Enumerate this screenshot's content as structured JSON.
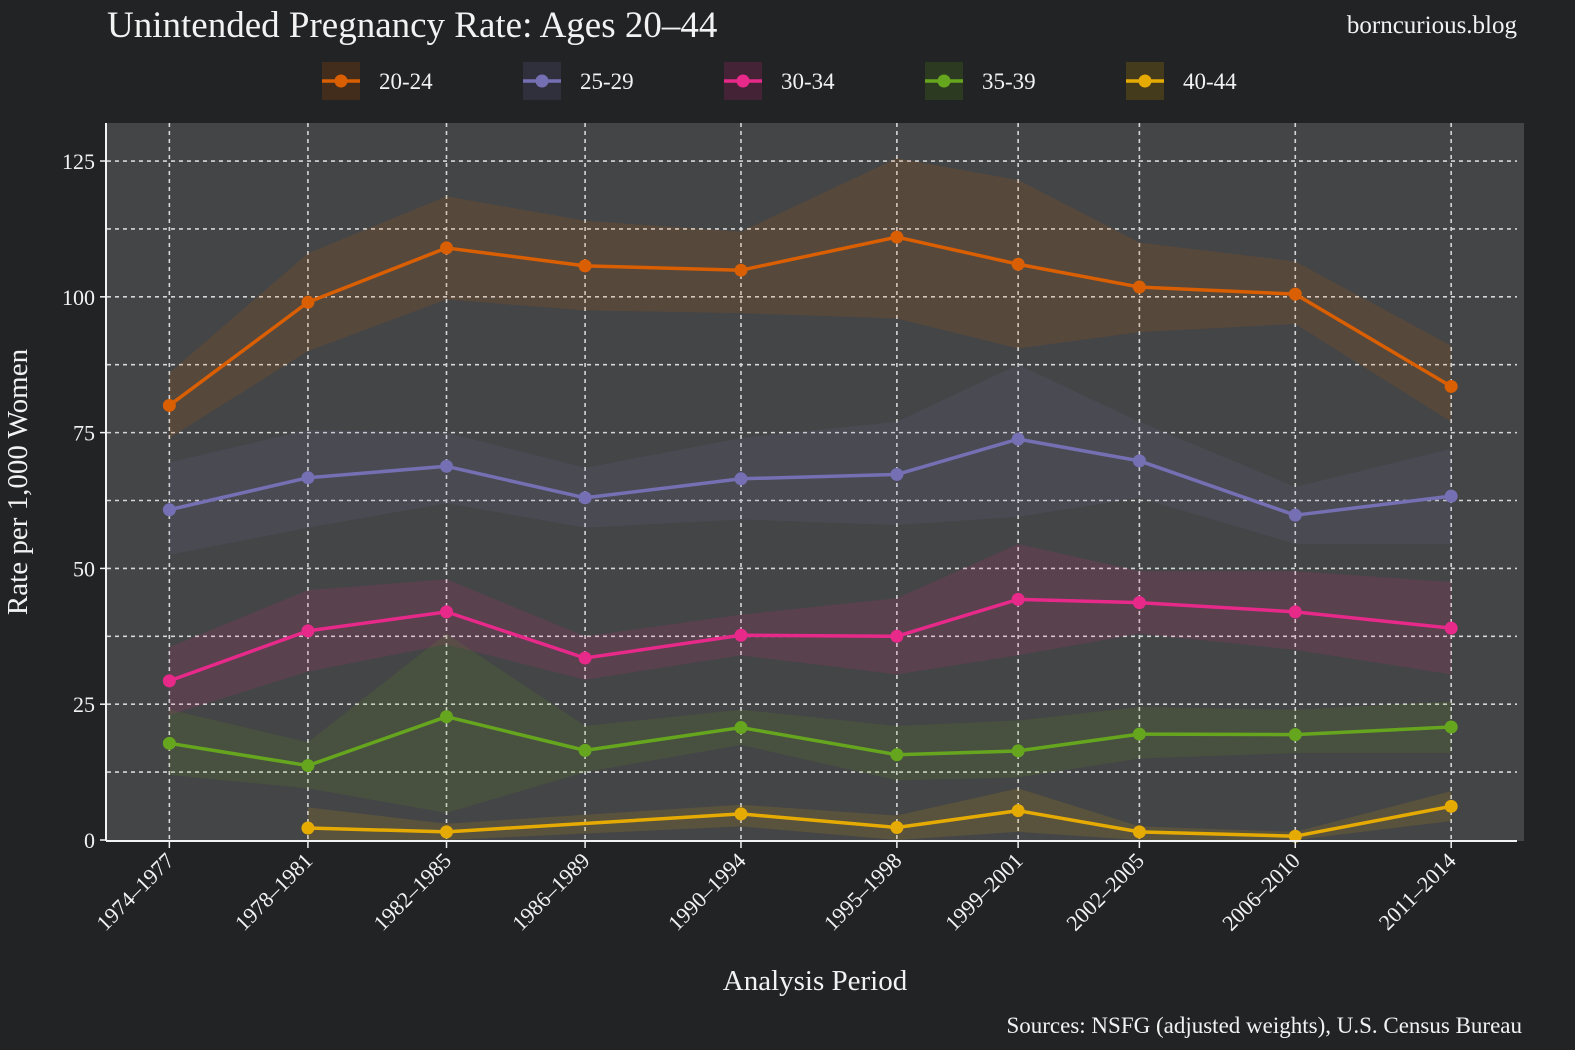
{
  "chart_data": {
    "type": "line",
    "title": "Unintended Pregnancy Rate: Ages 20–44",
    "site": "borncurious.blog",
    "xlabel": "Analysis Period",
    "ylabel": "Rate per 1,000 Women",
    "source": "Sources: NSFG (adjusted weights), U.S. Census Bureau",
    "ylim": [
      0,
      132
    ],
    "yticks": [
      0,
      25,
      50,
      75,
      100,
      125
    ],
    "grid": true,
    "legend_position": "top",
    "categories": [
      "1974–1977",
      "1978–1981",
      "1982–1985",
      "1986–1989",
      "1990–1994",
      "1995–1998",
      "1999–2001",
      "2002–2005",
      "2006–2010",
      "2011–2014"
    ],
    "x_positions": [
      1975.5,
      1979.5,
      1983.5,
      1987.5,
      1992,
      1996.5,
      2000,
      2003.5,
      2008,
      2012.5
    ],
    "xlim": [
      1973.7,
      2014.4
    ],
    "series": [
      {
        "name": "20-24",
        "color": "#d95f02",
        "values": [
          80,
          99,
          109,
          105.7,
          104.9,
          111,
          106,
          101.8,
          100.5,
          83.5
        ],
        "lower": [
          74,
          90,
          99.5,
          97.5,
          97,
          96,
          90.5,
          93.5,
          95,
          77
        ],
        "upper": [
          86,
          108,
          118.5,
          114,
          112,
          125.5,
          121.5,
          110,
          106.5,
          91
        ]
      },
      {
        "name": "25-29",
        "color": "#7570b3",
        "values": [
          60.8,
          66.7,
          68.8,
          63,
          66.5,
          67.3,
          73.8,
          69.8,
          59.8,
          63.3
        ],
        "lower": [
          52.5,
          57.5,
          62,
          57.5,
          59,
          58,
          59.5,
          63,
          54.5,
          54.5
        ],
        "upper": [
          69.5,
          75.5,
          75,
          68.5,
          74,
          77,
          87.5,
          77,
          65,
          72
        ]
      },
      {
        "name": "30-34",
        "color": "#e7298a",
        "values": [
          29.3,
          38.5,
          42,
          33.5,
          37.7,
          37.5,
          44.3,
          43.7,
          42,
          39
        ],
        "lower": [
          23,
          31,
          36,
          29.5,
          34,
          30.5,
          34,
          38,
          35,
          30.5
        ],
        "upper": [
          35.5,
          46,
          48,
          37.5,
          41.5,
          44.5,
          54.5,
          49.5,
          49.5,
          47.5
        ]
      },
      {
        "name": "35-39",
        "color": "#66a61e",
        "values": [
          17.8,
          13.7,
          22.7,
          16.5,
          20.7,
          15.7,
          16.4,
          19.5,
          19.4,
          20.8
        ],
        "lower": [
          12,
          9.5,
          5,
          12.5,
          17.5,
          11,
          11.5,
          15,
          16,
          16
        ],
        "upper": [
          24,
          18,
          38,
          21,
          24,
          21,
          22,
          24.5,
          24,
          25.5
        ]
      },
      {
        "name": "40-44",
        "color": "#e6ab02",
        "values": [
          null,
          2.2,
          1.5,
          null,
          4.8,
          2.3,
          5.4,
          1.5,
          0.7,
          6.2
        ],
        "lower": [
          null,
          0,
          0,
          null,
          2.5,
          0,
          1.5,
          0,
          0,
          3.5
        ],
        "upper": [
          null,
          6,
          3,
          null,
          6.5,
          4.5,
          9.5,
          2.5,
          1.5,
          9
        ]
      }
    ]
  }
}
